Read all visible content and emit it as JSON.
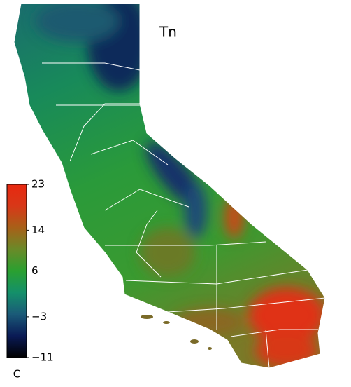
{
  "title": "Tn",
  "colorbar": {
    "unit": "C",
    "lim": [
      -11,
      23
    ],
    "ticks": [
      23,
      14,
      6,
      {
        "value": -3,
        "label": "−3"
      },
      {
        "value": -11,
        "label": "−11"
      }
    ],
    "colors": [
      "#000000",
      "#0a1a55",
      "#1a5a78",
      "#14906a",
      "#2aa030",
      "#6a8a28",
      "#a86018",
      "#d83818",
      "#e82810"
    ]
  }
}
